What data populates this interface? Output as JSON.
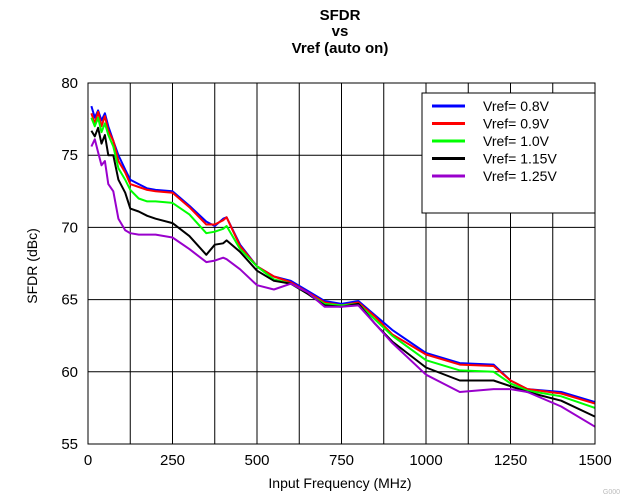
{
  "chart_data": {
    "type": "line",
    "title": [
      "SFDR",
      "vs",
      "Vref (auto on)"
    ],
    "xlabel": "Input Frequency (MHz)",
    "ylabel": "SFDR (dBc)",
    "xlim": [
      0,
      1500
    ],
    "ylim": [
      55,
      80
    ],
    "xticks": [
      0,
      250,
      500,
      750,
      1000,
      1250,
      1500
    ],
    "yticks": [
      55,
      60,
      65,
      70,
      75,
      80
    ],
    "x_grid_step": 125,
    "grid": true,
    "legend_position": "top-right",
    "series": [
      {
        "name": "Vref= 0.8V",
        "color": "#0000ff",
        "x": [
          10,
          20,
          30,
          40,
          50,
          60,
          75,
          90,
          110,
          125,
          150,
          175,
          200,
          250,
          300,
          350,
          375,
          400,
          410,
          450,
          500,
          550,
          600,
          650,
          700,
          750,
          800,
          850,
          900,
          1000,
          1100,
          1200,
          1250,
          1300,
          1400,
          1500
        ],
        "y": [
          78.4,
          77.6,
          78.1,
          77.4,
          77.9,
          77.0,
          76.0,
          75.0,
          74.0,
          73.3,
          73.0,
          72.7,
          72.6,
          72.5,
          71.5,
          70.4,
          70.1,
          70.6,
          70.7,
          68.8,
          67.3,
          66.6,
          66.3,
          65.6,
          64.9,
          64.7,
          64.9,
          63.9,
          62.9,
          61.3,
          60.6,
          60.5,
          59.4,
          58.8,
          58.6,
          57.9
        ]
      },
      {
        "name": "Vref= 0.9V",
        "color": "#ff0000",
        "x": [
          10,
          20,
          30,
          40,
          50,
          60,
          75,
          90,
          110,
          125,
          150,
          175,
          200,
          250,
          300,
          350,
          375,
          400,
          410,
          450,
          500,
          550,
          600,
          650,
          700,
          750,
          800,
          850,
          900,
          1000,
          1100,
          1200,
          1250,
          1300,
          1400,
          1500
        ],
        "y": [
          77.9,
          77.2,
          78.0,
          77.0,
          77.7,
          76.7,
          76.0,
          74.6,
          73.8,
          73.0,
          72.8,
          72.6,
          72.5,
          72.4,
          71.4,
          70.2,
          70.2,
          70.5,
          70.7,
          68.7,
          67.3,
          66.6,
          66.2,
          65.5,
          64.8,
          64.6,
          64.8,
          63.8,
          62.6,
          61.2,
          60.5,
          60.4,
          59.4,
          58.8,
          58.5,
          57.8
        ]
      },
      {
        "name": "Vref= 1.0V",
        "color": "#00ff00",
        "x": [
          10,
          20,
          30,
          40,
          50,
          60,
          75,
          90,
          110,
          125,
          150,
          175,
          200,
          250,
          300,
          350,
          375,
          400,
          410,
          450,
          500,
          550,
          600,
          650,
          700,
          750,
          800,
          850,
          900,
          1000,
          1100,
          1200,
          1250,
          1300,
          1400,
          1500
        ],
        "y": [
          77.6,
          77.0,
          77.6,
          76.6,
          77.2,
          76.4,
          75.6,
          74.1,
          73.3,
          72.6,
          72.0,
          71.8,
          71.8,
          71.7,
          70.9,
          69.6,
          69.7,
          69.9,
          70.1,
          68.5,
          67.3,
          66.4,
          66.1,
          65.4,
          64.7,
          64.6,
          64.7,
          63.6,
          62.5,
          60.8,
          60.1,
          60.0,
          59.2,
          58.7,
          58.3,
          57.5
        ]
      },
      {
        "name": "Vref= 1.15V",
        "color": "#000000",
        "x": [
          10,
          20,
          30,
          40,
          50,
          60,
          75,
          90,
          110,
          125,
          150,
          175,
          200,
          250,
          300,
          350,
          375,
          400,
          410,
          450,
          500,
          550,
          600,
          650,
          700,
          750,
          800,
          850,
          900,
          1000,
          1100,
          1200,
          1250,
          1300,
          1400,
          1500
        ],
        "y": [
          76.7,
          76.3,
          76.9,
          75.8,
          76.4,
          75.0,
          75.0,
          73.3,
          72.4,
          71.3,
          71.1,
          70.8,
          70.6,
          70.3,
          69.4,
          68.1,
          68.8,
          68.9,
          69.1,
          68.3,
          67.0,
          66.3,
          66.1,
          65.4,
          64.6,
          64.5,
          64.7,
          63.3,
          62.1,
          60.3,
          59.4,
          59.4,
          59.0,
          58.6,
          58.0,
          56.9
        ]
      },
      {
        "name": "Vref= 1.25V",
        "color": "#9900cc",
        "x": [
          10,
          20,
          30,
          40,
          50,
          60,
          75,
          90,
          110,
          125,
          150,
          175,
          200,
          250,
          300,
          350,
          375,
          400,
          410,
          450,
          500,
          550,
          600,
          650,
          700,
          750,
          800,
          850,
          900,
          1000,
          1100,
          1200,
          1250,
          1300,
          1400,
          1500
        ],
        "y": [
          75.6,
          76.1,
          75.2,
          74.3,
          74.6,
          73.0,
          72.5,
          70.6,
          69.8,
          69.6,
          69.5,
          69.5,
          69.5,
          69.3,
          68.5,
          67.6,
          67.7,
          67.9,
          67.8,
          67.1,
          66.0,
          65.7,
          66.1,
          65.5,
          64.5,
          64.5,
          64.6,
          63.3,
          62.0,
          59.8,
          58.6,
          58.8,
          58.8,
          58.6,
          57.6,
          56.2
        ]
      }
    ]
  },
  "watermark": "G000"
}
